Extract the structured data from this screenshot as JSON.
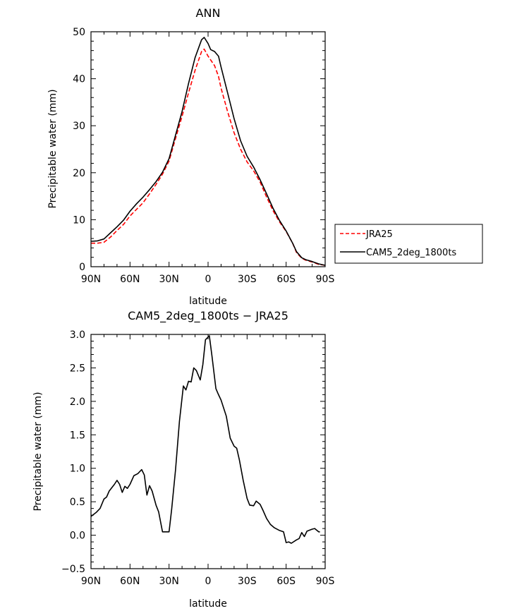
{
  "chart_data": [
    {
      "type": "line",
      "title": "ANN",
      "xlabel": "latitude",
      "ylabel": "Precipitable water (mm)",
      "xlim": [
        90,
        -90
      ],
      "ylim": [
        0,
        50
      ],
      "x_ticks": [
        {
          "value": 90,
          "label": "90N"
        },
        {
          "value": 60,
          "label": "60N"
        },
        {
          "value": 30,
          "label": "30N"
        },
        {
          "value": 0,
          "label": "0"
        },
        {
          "value": -30,
          "label": "30S"
        },
        {
          "value": -60,
          "label": "60S"
        },
        {
          "value": -90,
          "label": "90S"
        }
      ],
      "y_ticks": [
        {
          "value": 0,
          "label": "0"
        },
        {
          "value": 10,
          "label": "10"
        },
        {
          "value": 20,
          "label": "20"
        },
        {
          "value": 30,
          "label": "30"
        },
        {
          "value": 40,
          "label": "40"
        },
        {
          "value": 50,
          "label": "50"
        }
      ],
      "legend_position": "right",
      "series": [
        {
          "name": "JRA25",
          "color": "#ff0000",
          "dash": "dashed",
          "points": [
            [
              90,
              5.0
            ],
            [
              85,
              5.0
            ],
            [
              80,
              5.2
            ],
            [
              75,
              6.3
            ],
            [
              70,
              7.7
            ],
            [
              65,
              9.0
            ],
            [
              60,
              10.8
            ],
            [
              55,
              12.2
            ],
            [
              50,
              13.6
            ],
            [
              45,
              15.5
            ],
            [
              40,
              17.5
            ],
            [
              35,
              19.7
            ],
            [
              30,
              22.5
            ],
            [
              25,
              27.3
            ],
            [
              20,
              32.0
            ],
            [
              15,
              37.0
            ],
            [
              10,
              41.8
            ],
            [
              5,
              45.8
            ],
            [
              3,
              46.3
            ],
            [
              0,
              44.8
            ],
            [
              -5,
              42.8
            ],
            [
              -8,
              40.5
            ],
            [
              -10,
              38.0
            ],
            [
              -15,
              33.0
            ],
            [
              -20,
              28.5
            ],
            [
              -25,
              25.0
            ],
            [
              -30,
              22.3
            ],
            [
              -35,
              20.4
            ],
            [
              -40,
              18.0
            ],
            [
              -45,
              14.8
            ],
            [
              -50,
              11.9
            ],
            [
              -55,
              9.5
            ],
            [
              -60,
              7.5
            ],
            [
              -65,
              5.0
            ],
            [
              -68,
              3.0
            ],
            [
              -72,
              1.8
            ],
            [
              -75,
              1.4
            ],
            [
              -80,
              1.0
            ],
            [
              -85,
              0.5
            ],
            [
              -90,
              0.3
            ]
          ]
        },
        {
          "name": "CAM5_2deg_1800ts",
          "color": "#000000",
          "dash": "solid",
          "points": [
            [
              90,
              5.4
            ],
            [
              85,
              5.5
            ],
            [
              80,
              5.9
            ],
            [
              75,
              7.2
            ],
            [
              70,
              8.5
            ],
            [
              65,
              9.9
            ],
            [
              60,
              11.8
            ],
            [
              55,
              13.4
            ],
            [
              50,
              14.8
            ],
            [
              45,
              16.4
            ],
            [
              40,
              18.1
            ],
            [
              35,
              20.1
            ],
            [
              30,
              23.0
            ],
            [
              25,
              28.0
            ],
            [
              20,
              33.0
            ],
            [
              15,
              39.0
            ],
            [
              10,
              44.5
            ],
            [
              5,
              48.3
            ],
            [
              3,
              48.8
            ],
            [
              0,
              47.5
            ],
            [
              -2,
              46.2
            ],
            [
              -5,
              45.8
            ],
            [
              -8,
              44.8
            ],
            [
              -10,
              42.5
            ],
            [
              -15,
              37.0
            ],
            [
              -20,
              31.5
            ],
            [
              -25,
              26.8
            ],
            [
              -30,
              23.5
            ],
            [
              -35,
              21.2
            ],
            [
              -40,
              18.5
            ],
            [
              -45,
              15.5
            ],
            [
              -50,
              12.4
            ],
            [
              -55,
              9.8
            ],
            [
              -60,
              7.6
            ],
            [
              -65,
              5.0
            ],
            [
              -68,
              3.2
            ],
            [
              -72,
              1.9
            ],
            [
              -75,
              1.5
            ],
            [
              -80,
              1.1
            ],
            [
              -85,
              0.6
            ],
            [
              -90,
              0.3
            ]
          ]
        }
      ]
    },
    {
      "type": "line",
      "title": "CAM5_2deg_1800ts − JRA25",
      "xlabel": "latitude",
      "ylabel": "Precipitable water (mm)",
      "xlim": [
        90,
        -90
      ],
      "ylim": [
        -0.5,
        3.0
      ],
      "x_ticks": [
        {
          "value": 90,
          "label": "90N"
        },
        {
          "value": 60,
          "label": "60N"
        },
        {
          "value": 30,
          "label": "30N"
        },
        {
          "value": 0,
          "label": "0"
        },
        {
          "value": -30,
          "label": "30S"
        },
        {
          "value": -60,
          "label": "60S"
        },
        {
          "value": -90,
          "label": "90S"
        }
      ],
      "y_ticks": [
        {
          "value": -0.5,
          "label": "−0.5"
        },
        {
          "value": 0.0,
          "label": "0.0"
        },
        {
          "value": 0.5,
          "label": "0.5"
        },
        {
          "value": 1.0,
          "label": "1.0"
        },
        {
          "value": 1.5,
          "label": "1.5"
        },
        {
          "value": 2.0,
          "label": "2.0"
        },
        {
          "value": 2.5,
          "label": "2.5"
        },
        {
          "value": 3.0,
          "label": "3.0"
        }
      ],
      "series": [
        {
          "color": "#000000",
          "dash": "solid",
          "points": [
            [
              90,
              0.28
            ],
            [
              86,
              0.34
            ],
            [
              83,
              0.4
            ],
            [
              80,
              0.54
            ],
            [
              78,
              0.57
            ],
            [
              76,
              0.66
            ],
            [
              72,
              0.76
            ],
            [
              70,
              0.82
            ],
            [
              68,
              0.76
            ],
            [
              66,
              0.64
            ],
            [
              64,
              0.73
            ],
            [
              62,
              0.7
            ],
            [
              60,
              0.76
            ],
            [
              57,
              0.89
            ],
            [
              54,
              0.92
            ],
            [
              51,
              0.98
            ],
            [
              49,
              0.9
            ],
            [
              47,
              0.6
            ],
            [
              45,
              0.74
            ],
            [
              43,
              0.66
            ],
            [
              40,
              0.45
            ],
            [
              38,
              0.35
            ],
            [
              35,
              0.05
            ],
            [
              33,
              0.05
            ],
            [
              30,
              0.05
            ],
            [
              28,
              0.39
            ],
            [
              25,
              0.98
            ],
            [
              22,
              1.7
            ],
            [
              19,
              2.23
            ],
            [
              17,
              2.17
            ],
            [
              15,
              2.3
            ],
            [
              13,
              2.29
            ],
            [
              11,
              2.5
            ],
            [
              9,
              2.46
            ],
            [
              6,
              2.32
            ],
            [
              4,
              2.55
            ],
            [
              2,
              2.92
            ],
            [
              -1,
              2.98
            ],
            [
              -3,
              2.68
            ],
            [
              -6,
              2.19
            ],
            [
              -8,
              2.1
            ],
            [
              -10,
              2.02
            ],
            [
              -14,
              1.78
            ],
            [
              -17,
              1.45
            ],
            [
              -20,
              1.33
            ],
            [
              -22,
              1.3
            ],
            [
              -24,
              1.13
            ],
            [
              -27,
              0.82
            ],
            [
              -30,
              0.55
            ],
            [
              -32,
              0.45
            ],
            [
              -35,
              0.44
            ],
            [
              -37,
              0.51
            ],
            [
              -40,
              0.46
            ],
            [
              -42,
              0.38
            ],
            [
              -45,
              0.25
            ],
            [
              -48,
              0.16
            ],
            [
              -51,
              0.11
            ],
            [
              -55,
              0.07
            ],
            [
              -58,
              0.05
            ],
            [
              -60,
              -0.11
            ],
            [
              -62,
              -0.1
            ],
            [
              -64,
              -0.12
            ],
            [
              -68,
              -0.07
            ],
            [
              -70,
              -0.05
            ],
            [
              -72,
              0.04
            ],
            [
              -74,
              -0.02
            ],
            [
              -76,
              0.06
            ],
            [
              -80,
              0.09
            ],
            [
              -82,
              0.1
            ],
            [
              -85,
              0.05
            ],
            [
              -86,
              0.05
            ]
          ]
        }
      ]
    }
  ]
}
